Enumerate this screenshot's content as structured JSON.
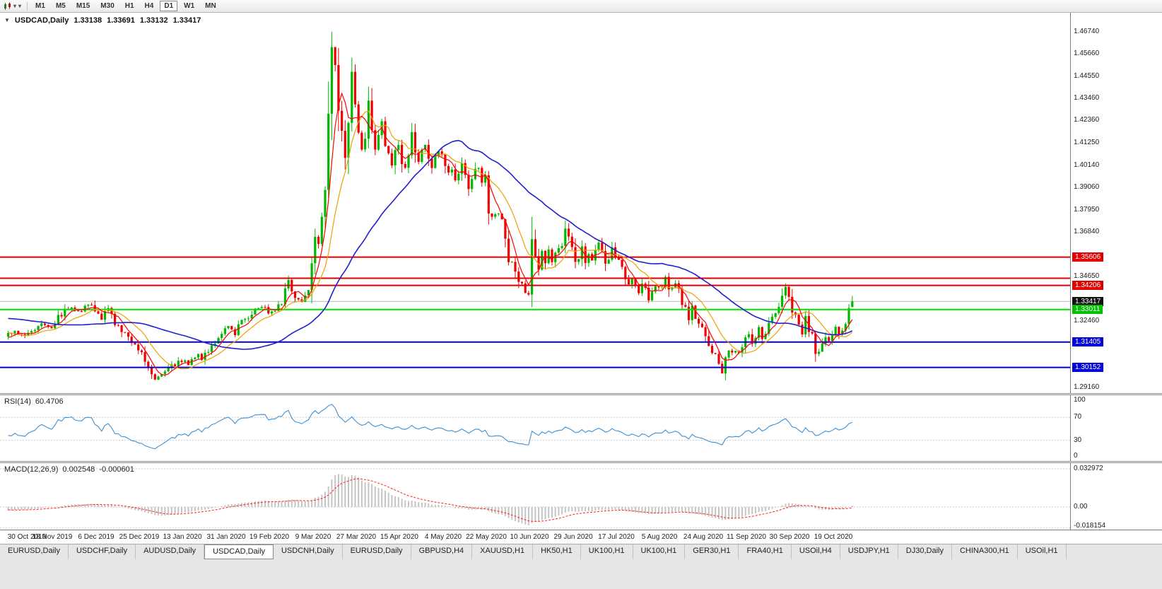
{
  "toolbar": {
    "timeframes": [
      "M1",
      "M5",
      "M15",
      "M30",
      "H1",
      "H4",
      "D1",
      "W1",
      "MN"
    ],
    "active_timeframe": "D1"
  },
  "chart": {
    "title": "USDCAD,Daily",
    "ohlc": {
      "open": "1.33138",
      "high": "1.33691",
      "low": "1.33132",
      "close": "1.33417"
    },
    "current_price": 1.33417,
    "price_axis_labels": [
      "1.46740",
      "1.45660",
      "1.44550",
      "1.43460",
      "1.42360",
      "1.41250",
      "1.40140",
      "1.39060",
      "1.37950",
      "1.36840",
      "1.34650",
      "1.32460",
      "1.29160"
    ],
    "badges": [
      {
        "text": "1.35606",
        "bg": "#e00000",
        "fg": "#ffffff",
        "price": 1.35606
      },
      {
        "text": "1.34206",
        "bg": "#e00000",
        "fg": "#ffffff",
        "price": 1.34206
      },
      {
        "text": "1.33417",
        "bg": "#111111",
        "fg": "#ffffff",
        "price": 1.33417
      },
      {
        "text": "1.33011",
        "bg": "#00c000",
        "fg": "#ffffff",
        "price": 1.33011
      },
      {
        "text": "1.31405",
        "bg": "#0000d8",
        "fg": "#ffffff",
        "price": 1.31405
      },
      {
        "text": "1.30152",
        "bg": "#0000d8",
        "fg": "#ffffff",
        "price": 1.30152
      }
    ],
    "hlines": [
      {
        "price": 1.35606,
        "color": "#e00000",
        "w": 2
      },
      {
        "price": 1.3456,
        "color": "#e00000",
        "w": 2
      },
      {
        "price": 1.34206,
        "color": "#e00000",
        "w": 2
      },
      {
        "price": 1.33011,
        "color": "#00e000",
        "w": 2
      },
      {
        "price": 1.31405,
        "color": "#0000d8",
        "w": 2
      },
      {
        "price": 1.30152,
        "color": "#0000d8",
        "w": 2
      }
    ]
  },
  "rsi": {
    "label": "RSI(14)",
    "value": "60.4706",
    "axis": [
      {
        "text": "100",
        "v": 100
      },
      {
        "text": "70",
        "v": 70
      },
      {
        "text": "30",
        "v": 30
      },
      {
        "text": "0",
        "v": 0
      }
    ],
    "levels": [
      70,
      30
    ]
  },
  "macd": {
    "label": "MACD(12,26,9)",
    "value_main": "0.002548",
    "value_signal": "-0.000601",
    "axis": [
      {
        "text": "0.032972",
        "v": 0.032972
      },
      {
        "text": "0.00",
        "v": 0
      },
      {
        "text": "-0.018154",
        "v": -0.018154
      }
    ]
  },
  "date_axis": [
    "30 Oct 2019",
    "18 Nov 2019",
    "6 Dec 2019",
    "25 Dec 2019",
    "13 Jan 2020",
    "31 Jan 2020",
    "19 Feb 2020",
    "9 Mar 2020",
    "27 Mar 2020",
    "15 Apr 2020",
    "4 May 2020",
    "22 May 2020",
    "10 Jun 2020",
    "29 Jun 2020",
    "17 Jul 2020",
    "5 Aug 2020",
    "24 Aug 2020",
    "11 Sep 2020",
    "30 Sep 2020",
    "19 Oct 2020"
  ],
  "tabs": {
    "active_index": 3,
    "items": [
      "EURUSD,Daily",
      "USDCHF,Daily",
      "AUDUSD,Daily",
      "USDCAD,Daily",
      "USDCNH,Daily",
      "EURUSD,Daily",
      "GBPUSD,H4",
      "XAUUSD,H1",
      "HK50,H1",
      "UK100,H1",
      "UK100,H1",
      "GER30,H1",
      "FRA40,H1",
      "USOil,H4",
      "USDJPY,H1",
      "DJ30,Daily",
      "CHINA300,H1",
      "USOil,H1"
    ]
  },
  "colors": {
    "up": "#00b800",
    "down": "#ee0000",
    "ma_fast": "#ff0000",
    "ma_mid": "#eea000",
    "ma_slow": "#2020cc",
    "rsi_line": "#3f8fd2",
    "macd_hist": "#c4c4c4",
    "macd_signal": "#ff2020"
  },
  "chart_data": {
    "type": "candlestick",
    "symbol": "USDCAD",
    "period": "Daily",
    "visible_price_range": [
      1.2888,
      1.4768
    ],
    "bars_count": 254,
    "ma_periods": {
      "fast": 5,
      "mid": 12,
      "slow": 40
    },
    "last_bar": {
      "open": 1.33138,
      "high": 1.33691,
      "low": 1.33132,
      "close": 1.33417
    },
    "extremes": {
      "high": {
        "index": 97,
        "price": 1.4674
      },
      "low": {
        "index": 44,
        "price": 1.2952
      },
      "sep_low": {
        "index": 214,
        "price": 1.2994
      }
    },
    "indicators": {
      "rsi_current": 60.4706,
      "macd_current": 0.002548,
      "macd_signal_current": -0.000601
    },
    "waypoints": [
      [
        -50,
        1.3245
      ],
      [
        -42,
        1.3195
      ],
      [
        -34,
        1.327
      ],
      [
        -26,
        1.3335
      ],
      [
        -18,
        1.33
      ],
      [
        -10,
        1.3235
      ],
      [
        -5,
        1.3165
      ],
      [
        -2,
        1.3145
      ],
      [
        0,
        1.3175
      ],
      [
        2,
        1.321
      ],
      [
        4,
        1.3165
      ],
      [
        7,
        1.319
      ],
      [
        10,
        1.324
      ],
      [
        13,
        1.322
      ],
      [
        16,
        1.3285
      ],
      [
        19,
        1.3315
      ],
      [
        22,
        1.33
      ],
      [
        24,
        1.3325
      ],
      [
        26,
        1.3295
      ],
      [
        28,
        1.326
      ],
      [
        30,
        1.33
      ],
      [
        32,
        1.3245
      ],
      [
        34,
        1.3185
      ],
      [
        36,
        1.317
      ],
      [
        38,
        1.3135
      ],
      [
        40,
        1.309
      ],
      [
        42,
        1.302
      ],
      [
        44,
        1.2968
      ],
      [
        46,
        1.2985
      ],
      [
        48,
        1.303
      ],
      [
        50,
        1.301
      ],
      [
        52,
        1.3055
      ],
      [
        54,
        1.304
      ],
      [
        56,
        1.3075
      ],
      [
        58,
        1.306
      ],
      [
        60,
        1.311
      ],
      [
        62,
        1.3145
      ],
      [
        64,
        1.317
      ],
      [
        66,
        1.321
      ],
      [
        68,
        1.319
      ],
      [
        70,
        1.325
      ],
      [
        72,
        1.327
      ],
      [
        74,
        1.33
      ],
      [
        76,
        1.332
      ],
      [
        78,
        1.329
      ],
      [
        80,
        1.331
      ],
      [
        82,
        1.3345
      ],
      [
        84,
        1.343
      ],
      [
        85,
        1.34
      ],
      [
        86,
        1.3365
      ],
      [
        88,
        1.334
      ],
      [
        90,
        1.342
      ],
      [
        91,
        1.353
      ],
      [
        92,
        1.369
      ],
      [
        93,
        1.365
      ],
      [
        94,
        1.377
      ],
      [
        95,
        1.392
      ],
      [
        96,
        1.428
      ],
      [
        97,
        1.462
      ],
      [
        98,
        1.447
      ],
      [
        99,
        1.43
      ],
      [
        100,
        1.415
      ],
      [
        101,
        1.406
      ],
      [
        102,
        1.426
      ],
      [
        103,
        1.445
      ],
      [
        104,
        1.431
      ],
      [
        105,
        1.416
      ],
      [
        106,
        1.406
      ],
      [
        107,
        1.418
      ],
      [
        108,
        1.43
      ],
      [
        109,
        1.42
      ],
      [
        110,
        1.409
      ],
      [
        111,
        1.416
      ],
      [
        112,
        1.423
      ],
      [
        113,
        1.414
      ],
      [
        114,
        1.406
      ],
      [
        115,
        1.4
      ],
      [
        116,
        1.409
      ],
      [
        117,
        1.411
      ],
      [
        118,
        1.403
      ],
      [
        119,
        1.398
      ],
      [
        120,
        1.408
      ],
      [
        121,
        1.416
      ],
      [
        122,
        1.41
      ],
      [
        123,
        1.403
      ],
      [
        124,
        1.409
      ],
      [
        125,
        1.413
      ],
      [
        126,
        1.406
      ],
      [
        127,
        1.4
      ],
      [
        128,
        1.405
      ],
      [
        129,
        1.41
      ],
      [
        130,
        1.407
      ],
      [
        131,
        1.401
      ],
      [
        132,
        1.396
      ],
      [
        133,
        1.401
      ],
      [
        134,
        1.395
      ],
      [
        135,
        1.4
      ],
      [
        136,
        1.404
      ],
      [
        137,
        1.397
      ],
      [
        138,
        1.392
      ],
      [
        139,
        1.397
      ],
      [
        140,
        1.401
      ],
      [
        141,
        1.399
      ],
      [
        142,
        1.394
      ],
      [
        143,
        1.3985
      ],
      [
        144,
        1.378
      ],
      [
        145,
        1.375
      ],
      [
        146,
        1.377
      ],
      [
        147,
        1.379
      ],
      [
        148,
        1.372
      ],
      [
        149,
        1.364
      ],
      [
        150,
        1.357
      ],
      [
        151,
        1.352
      ],
      [
        152,
        1.348
      ],
      [
        153,
        1.343
      ],
      [
        154,
        1.342
      ],
      [
        155,
        1.339
      ],
      [
        156,
        1.336
      ],
      [
        157,
        1.363
      ],
      [
        158,
        1.356
      ],
      [
        159,
        1.352
      ],
      [
        160,
        1.358
      ],
      [
        161,
        1.354
      ],
      [
        162,
        1.359
      ],
      [
        163,
        1.353
      ],
      [
        164,
        1.357
      ],
      [
        165,
        1.361
      ],
      [
        166,
        1.362
      ],
      [
        167,
        1.368
      ],
      [
        168,
        1.364
      ],
      [
        169,
        1.358
      ],
      [
        170,
        1.354
      ],
      [
        171,
        1.357
      ],
      [
        172,
        1.361
      ],
      [
        173,
        1.356
      ],
      [
        174,
        1.359
      ],
      [
        175,
        1.3545
      ],
      [
        176,
        1.358
      ],
      [
        177,
        1.362
      ],
      [
        178,
        1.356
      ],
      [
        179,
        1.352
      ],
      [
        180,
        1.356
      ],
      [
        181,
        1.359
      ],
      [
        182,
        1.357
      ],
      [
        183,
        1.354
      ],
      [
        184,
        1.35
      ],
      [
        185,
        1.346
      ],
      [
        186,
        1.342
      ],
      [
        187,
        1.345
      ],
      [
        188,
        1.341
      ],
      [
        189,
        1.338
      ],
      [
        190,
        1.342
      ],
      [
        191,
        1.339
      ],
      [
        192,
        1.336
      ],
      [
        193,
        1.34
      ],
      [
        194,
        1.343
      ],
      [
        195,
        1.34
      ],
      [
        196,
        1.343
      ],
      [
        197,
        1.346
      ],
      [
        198,
        1.342
      ],
      [
        199,
        1.339
      ],
      [
        200,
        1.342
      ],
      [
        201,
        1.338
      ],
      [
        202,
        1.334
      ],
      [
        203,
        1.33
      ],
      [
        204,
        1.327
      ],
      [
        205,
        1.33
      ],
      [
        206,
        1.325
      ],
      [
        207,
        1.322
      ],
      [
        208,
        1.32
      ],
      [
        209,
        1.316
      ],
      [
        210,
        1.313
      ],
      [
        211,
        1.31
      ],
      [
        212,
        1.306
      ],
      [
        213,
        1.302
      ],
      [
        214,
        1.2995
      ],
      [
        215,
        1.307
      ],
      [
        216,
        1.312
      ],
      [
        217,
        1.309
      ],
      [
        218,
        1.311
      ],
      [
        219,
        1.308
      ],
      [
        220,
        1.313
      ],
      [
        221,
        1.316
      ],
      [
        222,
        1.319
      ],
      [
        223,
        1.315
      ],
      [
        224,
        1.317
      ],
      [
        225,
        1.32
      ],
      [
        226,
        1.316
      ],
      [
        227,
        1.3185
      ],
      [
        228,
        1.3215
      ],
      [
        229,
        1.3245
      ],
      [
        230,
        1.3275
      ],
      [
        231,
        1.3315
      ],
      [
        232,
        1.3365
      ],
      [
        233,
        1.3395
      ],
      [
        234,
        1.335
      ],
      [
        235,
        1.331
      ],
      [
        236,
        1.328
      ],
      [
        237,
        1.323
      ],
      [
        238,
        1.32
      ],
      [
        239,
        1.325
      ],
      [
        240,
        1.321
      ],
      [
        241,
        1.317
      ],
      [
        242,
        1.311
      ],
      [
        243,
        1.309
      ],
      [
        244,
        1.313
      ],
      [
        245,
        1.317
      ],
      [
        246,
        1.314
      ],
      [
        247,
        1.317
      ],
      [
        248,
        1.321
      ],
      [
        249,
        1.318
      ],
      [
        250,
        1.32
      ],
      [
        251,
        1.323
      ],
      [
        252,
        1.33138
      ],
      [
        253,
        1.33417
      ]
    ]
  }
}
